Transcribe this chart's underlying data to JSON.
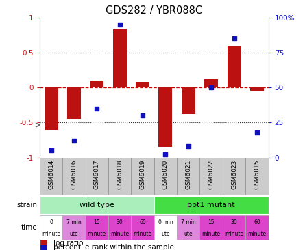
{
  "title": "GDS282 / YBR088C",
  "samples": [
    "GSM6014",
    "GSM6016",
    "GSM6017",
    "GSM6018",
    "GSM6019",
    "GSM6020",
    "GSM6021",
    "GSM6022",
    "GSM6023",
    "GSM6015"
  ],
  "log_ratios": [
    -0.6,
    -0.45,
    0.1,
    0.83,
    0.08,
    -0.85,
    -0.38,
    0.12,
    0.6,
    -0.05
  ],
  "percentile_ranks": [
    5,
    12,
    35,
    95,
    30,
    2,
    8,
    50,
    85,
    18
  ],
  "bar_color": "#bb1111",
  "dot_color": "#1111bb",
  "ylim": [
    -1.0,
    1.0
  ],
  "y2lim": [
    0,
    100
  ],
  "yticks": [
    -1.0,
    -0.5,
    0.0,
    0.5,
    1.0
  ],
  "ytick_labels": [
    "-1",
    "-0.5",
    "0",
    "0.5",
    "1"
  ],
  "y2ticks": [
    0,
    25,
    50,
    75,
    100
  ],
  "y2ticklabels": [
    "0",
    "25",
    "50",
    "75",
    "100%"
  ],
  "hline_color": "#cc0000",
  "dotted_color": "#555555",
  "strain_groups": [
    {
      "label": "wild type",
      "start": 0,
      "end": 5,
      "color": "#aaeebb"
    },
    {
      "label": "ppt1 mutant",
      "start": 5,
      "end": 10,
      "color": "#44dd44"
    }
  ],
  "time_labels": [
    {
      "line1": "0",
      "line2": "minute",
      "bg": "#ffffff"
    },
    {
      "line1": "7 min",
      "line2": "ute",
      "bg": "#dd88dd"
    },
    {
      "line1": "15",
      "line2": "minute",
      "bg": "#dd44cc"
    },
    {
      "line1": "30",
      "line2": "minute",
      "bg": "#dd44cc"
    },
    {
      "line1": "60",
      "line2": "minute",
      "bg": "#dd44cc"
    },
    {
      "line1": "0 min",
      "line2": "ute",
      "bg": "#ffffff"
    },
    {
      "line1": "7 min",
      "line2": "ute",
      "bg": "#dd88dd"
    },
    {
      "line1": "15",
      "line2": "minute",
      "bg": "#dd44cc"
    },
    {
      "line1": "30",
      "line2": "minute",
      "bg": "#dd44cc"
    },
    {
      "line1": "60",
      "line2": "minute",
      "bg": "#dd44cc"
    }
  ],
  "legend_red": "log ratio",
  "legend_blue": "percentile rank within the sample",
  "bg_color": "#ffffff",
  "tick_label_color_left": "#cc1111",
  "tick_label_color_right": "#1111cc",
  "label_bg": "#cccccc",
  "border_color": "#888888"
}
